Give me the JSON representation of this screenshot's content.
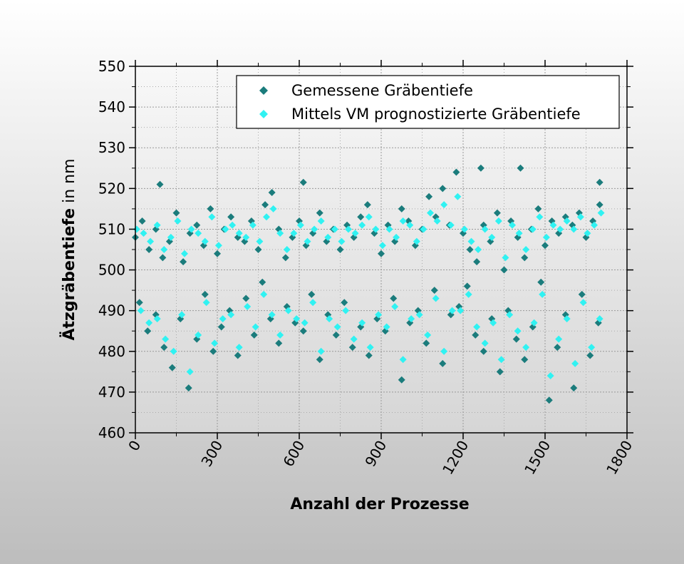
{
  "chart_data": {
    "type": "scatter",
    "xlabel": "Anzahl der Prozesse",
    "ylabel": "Ätzgräbentiefe",
    "ylabel_unit": "in nm",
    "xlim": [
      0,
      1800
    ],
    "xticks": [
      0,
      300,
      600,
      900,
      1200,
      1500,
      1800
    ],
    "ylim": [
      460,
      550
    ],
    "yticks": [
      460,
      470,
      480,
      490,
      500,
      510,
      520,
      530,
      540,
      550
    ],
    "grid": true,
    "legend": "top-right",
    "series": [
      {
        "name": "Gemessene  Gräbentiefe",
        "color": "#1b7c7c",
        "x": [
          0,
          25,
          50,
          75,
          100,
          125,
          150,
          175,
          200,
          225,
          250,
          275,
          300,
          325,
          350,
          375,
          400,
          425,
          450,
          475,
          500,
          525,
          550,
          575,
          600,
          625,
          650,
          675,
          700,
          725,
          750,
          775,
          800,
          825,
          850,
          875,
          900,
          925,
          950,
          975,
          1000,
          1025,
          1050,
          1075,
          1100,
          1125,
          1150,
          1175,
          1200,
          1225,
          1250,
          1275,
          1300,
          1325,
          1350,
          1375,
          1400,
          1425,
          1450,
          1475,
          1500,
          1525,
          1550,
          1575,
          1600,
          1625,
          1650,
          1675,
          1700,
          15,
          45,
          75,
          105,
          135,
          165,
          195,
          225,
          255,
          285,
          315,
          345,
          375,
          405,
          435,
          465,
          495,
          525,
          555,
          585,
          615,
          645,
          675,
          705,
          735,
          765,
          795,
          825,
          855,
          885,
          915,
          945,
          975,
          1005,
          1035,
          1065,
          1095,
          1125,
          1155,
          1185,
          1215,
          1245,
          1275,
          1305,
          1335,
          1365,
          1395,
          1425,
          1455,
          1485,
          1515,
          1545,
          1575,
          1605,
          1635,
          1665,
          1695,
          90,
          615,
          1410,
          1265,
          1700
        ],
        "values": [
          508,
          512,
          505,
          510,
          503,
          507,
          514,
          502,
          509,
          511,
          506,
          515,
          504,
          510,
          513,
          508,
          507,
          512,
          505,
          516,
          519,
          510,
          503,
          508,
          512,
          506,
          509,
          514,
          507,
          510,
          505,
          511,
          508,
          513,
          516,
          509,
          504,
          511,
          507,
          515,
          512,
          506,
          510,
          518,
          513,
          520,
          511,
          524,
          509,
          505,
          502,
          511,
          507,
          514,
          500,
          512,
          508,
          503,
          510,
          515,
          506,
          512,
          509,
          513,
          511,
          514,
          508,
          512,
          516,
          492,
          485,
          489,
          481,
          476,
          488,
          471,
          483,
          494,
          480,
          486,
          490,
          479,
          493,
          484,
          497,
          488,
          482,
          491,
          487,
          485,
          494,
          478,
          489,
          484,
          492,
          481,
          486,
          479,
          488,
          485,
          493,
          473,
          487,
          490,
          482,
          495,
          477,
          489,
          491,
          496,
          484,
          480,
          488,
          475,
          490,
          483,
          478,
          486,
          497,
          468,
          481,
          489,
          471,
          494,
          479,
          487,
          521,
          521.5,
          525,
          525,
          521.5
        ]
      },
      {
        "name": "Mittels VM prognostizierte Gräbentiefe",
        "color": "#30f2f2",
        "x": [
          5,
          30,
          55,
          80,
          105,
          130,
          155,
          180,
          205,
          230,
          255,
          280,
          305,
          330,
          355,
          380,
          405,
          430,
          455,
          480,
          505,
          530,
          555,
          580,
          605,
          630,
          655,
          680,
          705,
          730,
          755,
          780,
          805,
          830,
          855,
          880,
          905,
          930,
          955,
          980,
          1005,
          1030,
          1055,
          1080,
          1105,
          1130,
          1155,
          1180,
          1205,
          1230,
          1255,
          1280,
          1305,
          1330,
          1355,
          1380,
          1405,
          1430,
          1455,
          1480,
          1505,
          1530,
          1555,
          1580,
          1605,
          1630,
          1655,
          1680,
          1705,
          20,
          50,
          80,
          110,
          140,
          170,
          200,
          230,
          260,
          290,
          320,
          350,
          380,
          410,
          440,
          470,
          500,
          530,
          560,
          590,
          620,
          650,
          680,
          710,
          740,
          770,
          800,
          830,
          860,
          890,
          920,
          950,
          980,
          1010,
          1040,
          1070,
          1100,
          1130,
          1160,
          1190,
          1220,
          1250,
          1280,
          1310,
          1340,
          1370,
          1400,
          1430,
          1460,
          1490,
          1520,
          1550,
          1580,
          1610,
          1640,
          1670,
          1700
        ],
        "values": [
          510,
          509,
          507,
          511,
          505,
          508,
          512,
          504,
          510,
          509,
          507,
          513,
          506,
          510,
          511,
          509,
          508,
          511,
          507,
          513,
          515,
          509,
          505,
          509,
          511,
          507,
          510,
          512,
          508,
          510,
          507,
          510,
          509,
          511,
          513,
          510,
          506,
          510,
          508,
          512,
          511,
          507,
          510,
          514,
          512,
          516,
          511,
          518,
          510,
          507,
          505,
          510,
          508,
          512,
          503,
          511,
          509,
          505,
          510,
          513,
          508,
          511,
          510,
          512,
          510,
          513,
          509,
          511,
          514,
          490,
          487,
          488,
          483,
          480,
          489,
          475,
          484,
          492,
          482,
          488,
          489,
          481,
          491,
          486,
          494,
          489,
          484,
          490,
          488,
          487,
          492,
          480,
          488,
          486,
          490,
          483,
          487,
          481,
          489,
          486,
          491,
          478,
          488,
          489,
          484,
          493,
          480,
          490,
          490,
          494,
          486,
          482,
          487,
          478,
          489,
          485,
          481,
          487,
          494,
          474,
          483,
          488,
          477,
          492,
          481,
          488
        ]
      }
    ]
  }
}
